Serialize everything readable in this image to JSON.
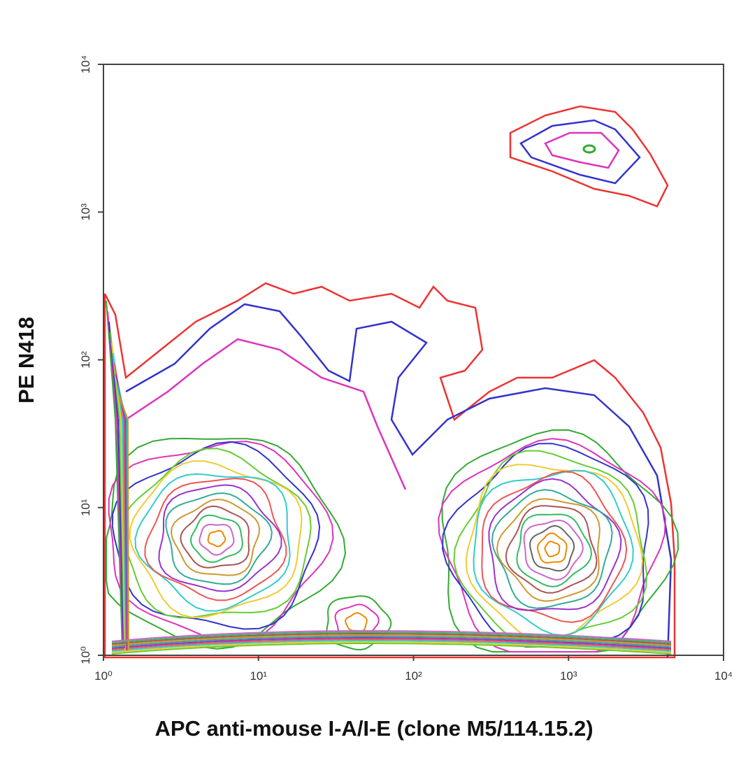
{
  "chart_data": {
    "type": "contour",
    "xlabel": "APC anti-mouse I-A/I-E (clone M5/114.15.2)",
    "ylabel": "PE N418",
    "xscale": "log",
    "yscale": "log",
    "xlim": [
      1,
      10000
    ],
    "ylim": [
      1,
      10000
    ],
    "xticks": [
      {
        "value": 1,
        "label": "10⁰"
      },
      {
        "value": 10,
        "label": "10¹"
      },
      {
        "value": 100,
        "label": "10²"
      },
      {
        "value": 1000,
        "label": "10³"
      },
      {
        "value": 10000,
        "label": "10⁴"
      }
    ],
    "yticks": [
      {
        "value": 1,
        "label": "10⁰"
      },
      {
        "value": 10,
        "label": "10¹"
      },
      {
        "value": 100,
        "label": "10²"
      },
      {
        "value": 1000,
        "label": "10³"
      },
      {
        "value": 10000,
        "label": "10⁴"
      }
    ]
  }
}
